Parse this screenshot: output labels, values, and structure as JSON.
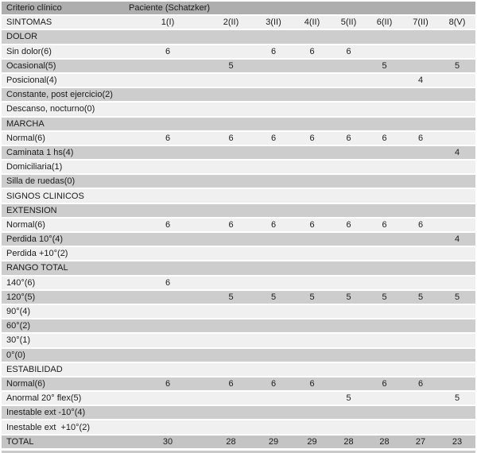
{
  "table": {
    "header": {
      "criterio": "Criterio clínico",
      "paciente": "Paciente (Schatzker)"
    },
    "patient_columns": [
      "1(I)",
      "2(II)",
      "3(II)",
      "4(II)",
      "5(II)",
      "6(II)",
      "7(II)",
      "8(V)"
    ],
    "rows": [
      {
        "label": "SINTOMAS",
        "values": [
          "1(I)",
          "2(II)",
          "3(II)",
          "4(II)",
          "5(II)",
          "6(II)",
          "7(II)",
          "8(V)"
        ]
      },
      {
        "label": "DOLOR",
        "values": [
          "",
          "",
          "",
          "",
          "",
          "",
          "",
          ""
        ]
      },
      {
        "label": "Sin dolor(6)",
        "values": [
          "6",
          "",
          "6",
          "6",
          "6",
          "",
          "",
          ""
        ]
      },
      {
        "label": "Ocasional(5)",
        "values": [
          "",
          "5",
          "",
          "",
          "",
          "5",
          "",
          "5"
        ]
      },
      {
        "label": "Posicional(4)",
        "values": [
          "",
          "",
          "",
          "",
          "",
          "",
          "4",
          ""
        ]
      },
      {
        "label": "Constante, post ejercicio(2)",
        "values": [
          "",
          "",
          "",
          "",
          "",
          "",
          "",
          ""
        ]
      },
      {
        "label": "Descanso, nocturno(0)",
        "values": [
          "",
          "",
          "",
          "",
          "",
          "",
          "",
          ""
        ]
      },
      {
        "label": "MARCHA",
        "values": [
          "",
          "",
          "",
          "",
          "",
          "",
          "",
          ""
        ]
      },
      {
        "label": "Normal(6)",
        "values": [
          "6",
          "6",
          "6",
          "6",
          "6",
          "6",
          "6",
          ""
        ]
      },
      {
        "label": "Caminata 1 hs(4)",
        "values": [
          "",
          "",
          "",
          "",
          "",
          "",
          "",
          "4"
        ]
      },
      {
        "label": "Domiciliaria(1)",
        "values": [
          "",
          "",
          "",
          "",
          "",
          "",
          "",
          ""
        ]
      },
      {
        "label": "Silla de ruedas(0)",
        "values": [
          "",
          "",
          "",
          "",
          "",
          "",
          "",
          ""
        ]
      },
      {
        "label": "SIGNOS CLINICOS",
        "values": [
          "",
          "",
          "",
          "",
          "",
          "",
          "",
          ""
        ]
      },
      {
        "label": "EXTENSION",
        "values": [
          "",
          "",
          "",
          "",
          "",
          "",
          "",
          ""
        ]
      },
      {
        "label": "Normal(6)",
        "values": [
          "6",
          "6",
          "6",
          "6",
          "6",
          "6",
          "6",
          ""
        ]
      },
      {
        "label": "Perdida 10°(4)",
        "values": [
          "",
          "",
          "",
          "",
          "",
          "",
          "",
          "4"
        ]
      },
      {
        "label": "Perdida +10°(2)",
        "values": [
          "",
          "",
          "",
          "",
          "",
          "",
          "",
          ""
        ]
      },
      {
        "label": "RANGO TOTAL",
        "values": [
          "",
          "",
          "",
          "",
          "",
          "",
          "",
          ""
        ]
      },
      {
        "label": "140°(6)",
        "values": [
          "6",
          "",
          "",
          "",
          "",
          "",
          "",
          ""
        ]
      },
      {
        "label": "120°(5)",
        "values": [
          "",
          "5",
          "5",
          "5",
          "5",
          "5",
          "5",
          "5"
        ]
      },
      {
        "label": "90°(4)",
        "values": [
          "",
          "",
          "",
          "",
          "",
          "",
          "",
          ""
        ]
      },
      {
        "label": "60°(2)",
        "values": [
          "",
          "",
          "",
          "",
          "",
          "",
          "",
          ""
        ]
      },
      {
        "label": "30°(1)",
        "values": [
          "",
          "",
          "",
          "",
          "",
          "",
          "",
          ""
        ]
      },
      {
        "label": "0°(0)",
        "values": [
          "",
          "",
          "",
          "",
          "",
          "",
          "",
          ""
        ]
      },
      {
        "label": "ESTABILIDAD",
        "values": [
          "",
          "",
          "",
          "",
          "",
          "",
          "",
          ""
        ]
      },
      {
        "label": "Normal(6)",
        "values": [
          "6",
          "6",
          "6",
          "6",
          "",
          "6",
          "6",
          ""
        ]
      },
      {
        "label": "Anormal 20° flex(5)",
        "values": [
          "",
          "",
          "",
          "",
          "5",
          "",
          "",
          "5"
        ]
      },
      {
        "label": "Inestable ext -10°(4)",
        "values": [
          "",
          "",
          "",
          "",
          "",
          "",
          "",
          ""
        ]
      },
      {
        "label": "Inestable ext  +10°(2)",
        "values": [
          "",
          "",
          "",
          "",
          "",
          "",
          "",
          ""
        ]
      },
      {
        "label": "TOTAL",
        "values": [
          "30",
          "28",
          "29",
          "29",
          "28",
          "28",
          "27",
          "23"
        ]
      }
    ]
  },
  "colors": {
    "header_bg": "#aeaeae",
    "row_gray": "#cdcdcd",
    "row_light": "#f0f0f0",
    "total_bg": "#c4c4c4",
    "bottom_edge": "#c9c9c9",
    "separator": "#ffffff",
    "text": "#1b1b1b"
  }
}
